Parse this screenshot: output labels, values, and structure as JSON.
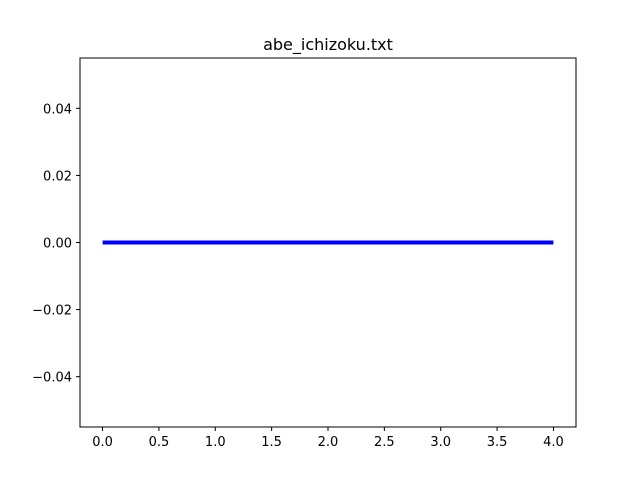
{
  "chart_data": {
    "type": "line",
    "title": "abe_ichizoku.txt",
    "xlabel": "",
    "ylabel": "",
    "xlim": [
      -0.2,
      4.2
    ],
    "ylim": [
      -0.055,
      0.055
    ],
    "x_ticks": [
      0.0,
      0.5,
      1.0,
      1.5,
      2.0,
      2.5,
      3.0,
      3.5,
      4.0
    ],
    "x_tick_labels": [
      "0.0",
      "0.5",
      "1.0",
      "1.5",
      "2.0",
      "2.5",
      "3.0",
      "3.5",
      "4.0"
    ],
    "y_ticks": [
      -0.04,
      -0.02,
      0.0,
      0.02,
      0.04
    ],
    "y_tick_labels": [
      "−0.04",
      "−0.02",
      "0.00",
      "0.02",
      "0.04"
    ],
    "grid": false,
    "series": [
      {
        "x": [
          0,
          1,
          2,
          3,
          4
        ],
        "y": [
          0,
          0,
          0,
          0,
          0
        ],
        "color": "#0000ff"
      }
    ]
  }
}
